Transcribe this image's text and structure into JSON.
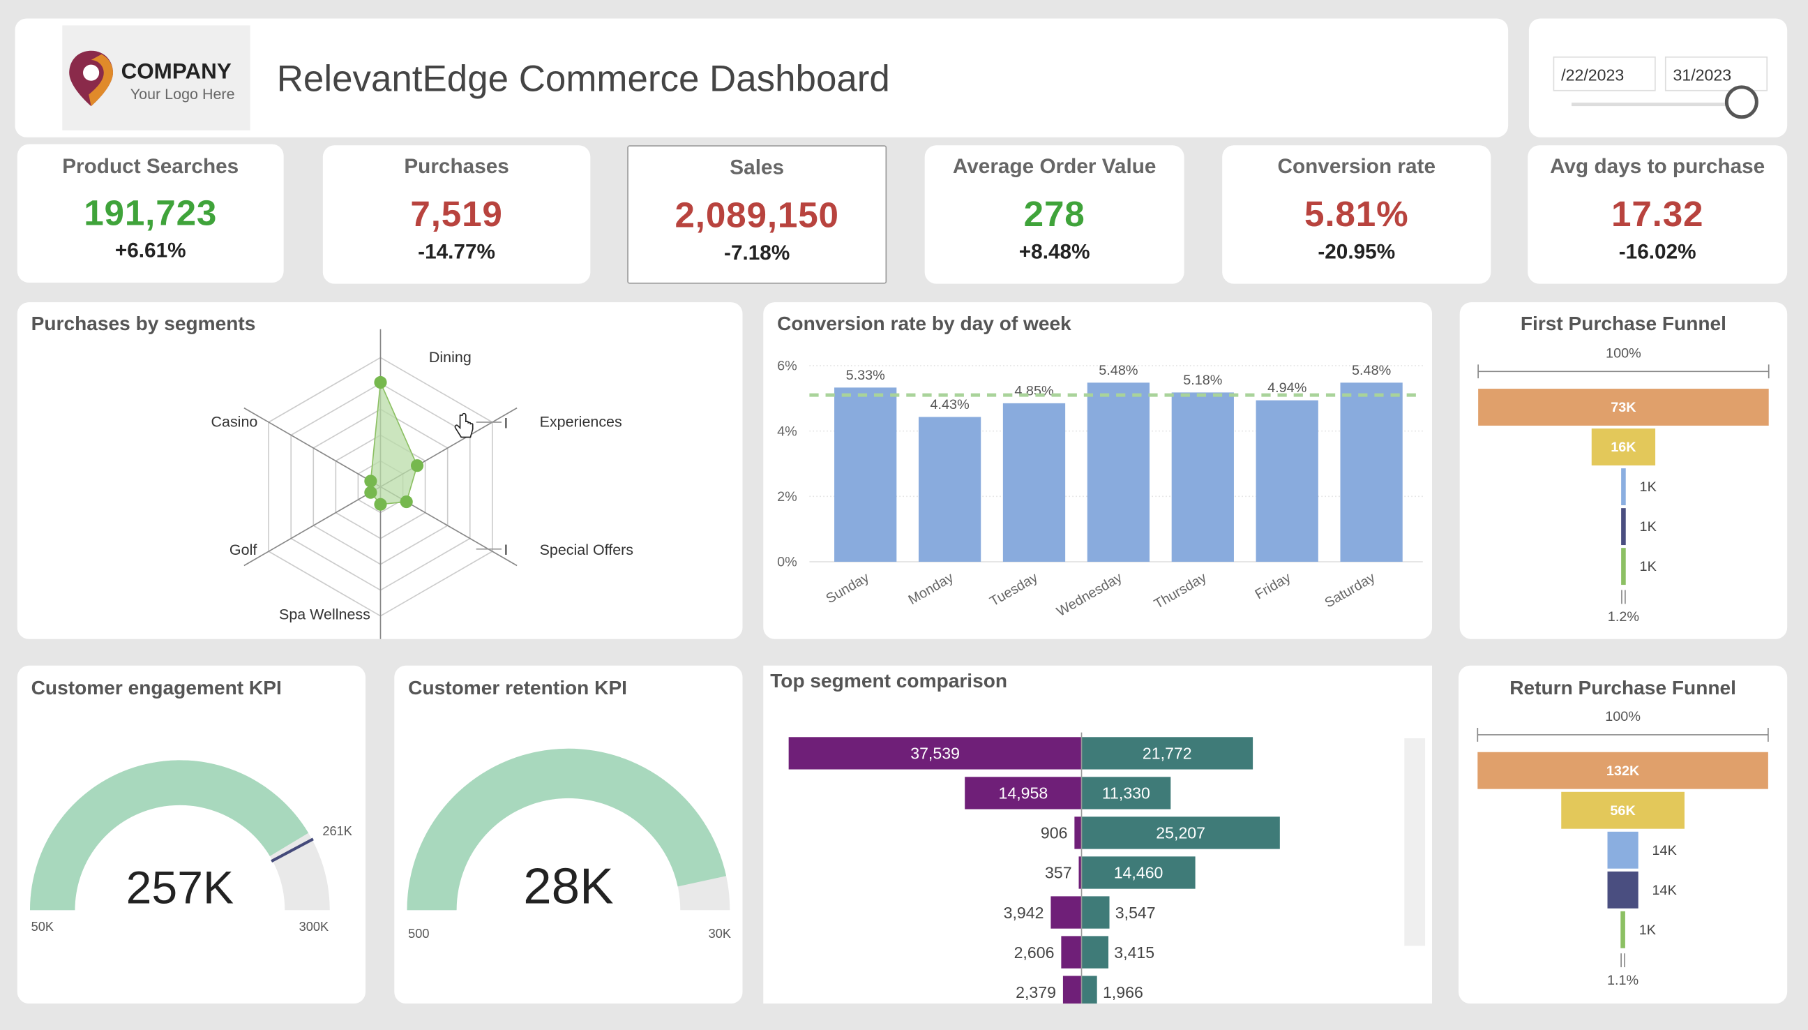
{
  "header": {
    "logo_company": "COMPANY",
    "logo_tagline": "Your Logo Here",
    "title": "RelevantEdge Commerce Dashboard"
  },
  "date_filter": {
    "start": "/22/2023",
    "end": "31/2023"
  },
  "kpis": [
    {
      "name": "Product Searches",
      "value": "191,723",
      "delta": "+6.61%",
      "trend": "up"
    },
    {
      "name": "Purchases",
      "value": "7,519",
      "delta": "-14.77%",
      "trend": "down"
    },
    {
      "name": "Sales",
      "value": "2,089,150",
      "delta": "-7.18%",
      "trend": "down"
    },
    {
      "name": "Average Order Value",
      "value": "278",
      "delta": "+8.48%",
      "trend": "up"
    },
    {
      "name": "Conversion rate",
      "value": "5.81%",
      "delta": "-20.95%",
      "trend": "down"
    },
    {
      "name": "Avg days to purchase",
      "value": "17.32",
      "delta": "-16.02%",
      "trend": "down"
    }
  ],
  "segments_panel": {
    "title": "Purchases by segments",
    "axis_labels": [
      "Dining",
      "Experiences",
      "Special Offers",
      "Spa Wellness",
      "Golf",
      "Casino"
    ],
    "tick_marks": [
      "I",
      "I"
    ]
  },
  "conversion_panel": {
    "title": "Conversion rate by day of week"
  },
  "first_funnel": {
    "title": "First Purchase Funnel",
    "top_label": "100%",
    "bottom_label": "1.2%",
    "stages": [
      {
        "label": "73K",
        "value": 73000,
        "color": "#e0a06b"
      },
      {
        "label": "16K",
        "value": 16000,
        "color": "#e3c85a"
      },
      {
        "label": "1K",
        "value": 1000,
        "color": "#8aaee0"
      },
      {
        "label": "1K",
        "value": 1000,
        "color": "#4a4e80"
      },
      {
        "label": "1K",
        "value": 1000,
        "color": "#8cc063"
      }
    ]
  },
  "return_funnel": {
    "title": "Return Purchase Funnel",
    "top_label": "100%",
    "bottom_label": "1.1%",
    "stages": [
      {
        "label": "132K",
        "value": 132000,
        "color": "#e0a06b"
      },
      {
        "label": "56K",
        "value": 56000,
        "color": "#e3c85a"
      },
      {
        "label": "14K",
        "value": 14000,
        "color": "#8aaee0"
      },
      {
        "label": "14K",
        "value": 14000,
        "color": "#4a4e80"
      },
      {
        "label": "1K",
        "value": 1000,
        "color": "#8cc063"
      }
    ]
  },
  "engagement_gauge": {
    "title": "Customer engagement KPI",
    "value_label": "257K",
    "value": 257000,
    "min_label": "50K",
    "max_label": "300K",
    "min": 50000,
    "max": 300000,
    "target": 261000,
    "target_label": "261K"
  },
  "retention_gauge": {
    "title": "Customer retention KPI",
    "value_label": "28K",
    "value": 28000,
    "min_label": "500",
    "max_label": "30K",
    "min": 500,
    "max": 30000
  },
  "segment_comparison": {
    "title": "Top segment comparison"
  },
  "colors": {
    "accent_green": "#3fa33a",
    "accent_red": "#b8433e",
    "bar_blue": "#89abdd",
    "purple": "#6f1f78",
    "teal": "#3f7b78",
    "gauge_green": "#a8d8bd"
  },
  "chart_data": [
    {
      "type": "radar",
      "name": "Purchases by segments",
      "categories": [
        "Dining",
        "Experiences",
        "Special Offers",
        "Spa Wellness",
        "Golf",
        "Casino"
      ],
      "values": [
        0.8,
        0.3,
        0.2,
        0.1,
        0.05,
        0.05
      ]
    },
    {
      "type": "bar",
      "title": "Conversion rate by day of week",
      "categories": [
        "Sunday",
        "Monday",
        "Tuesday",
        "Wednesday",
        "Thursday",
        "Friday",
        "Saturday"
      ],
      "values": [
        5.33,
        4.43,
        4.85,
        5.48,
        5.18,
        4.94,
        5.48
      ],
      "value_labels": [
        "5.33%",
        "4.43%",
        "4.85%",
        "5.48%",
        "5.18%",
        "4.94%",
        "5.48%"
      ],
      "y_ticks": [
        "0%",
        "2%",
        "4%",
        "6%"
      ],
      "ylim": [
        0,
        6
      ],
      "reference_line": 5.1
    },
    {
      "type": "bar",
      "title": "Top segment comparison",
      "orientation": "diverging-horizontal",
      "left_values": [
        37539,
        14958,
        906,
        357,
        3942,
        2606,
        2379
      ],
      "left_labels": [
        "37,539",
        "14,958",
        "906",
        "357",
        "3,942",
        "2,606",
        "2,379"
      ],
      "right_values": [
        21772,
        11330,
        25207,
        14460,
        3547,
        3415,
        1966
      ],
      "right_labels": [
        "21,772",
        "11,330",
        "25,207",
        "14,460",
        "3,547",
        "3,415",
        "1,966"
      ]
    }
  ]
}
